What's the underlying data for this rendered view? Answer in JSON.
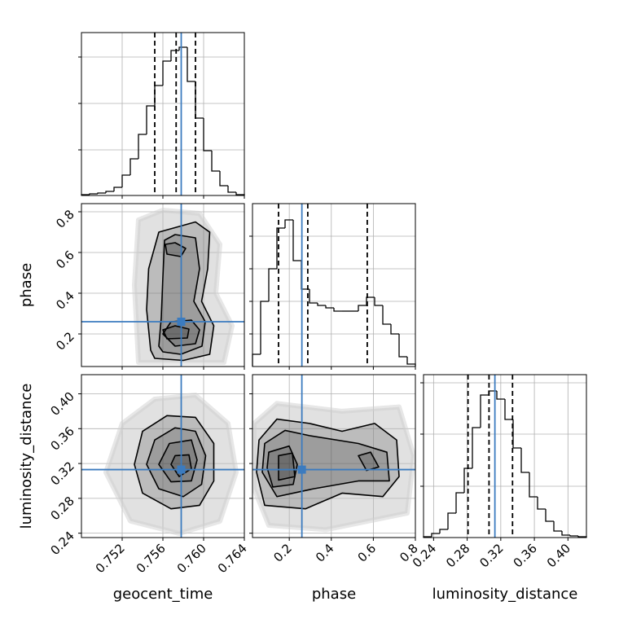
{
  "chart_data": {
    "type": "corner",
    "grid": true,
    "truth_color": "#3b7bbf",
    "parameters": [
      {
        "name": "geocent_time",
        "xlim": [
          0.748,
          0.764
        ],
        "ticks": [
          0.752,
          0.756,
          {
            "value": 0.76,
            "label": "0.760"
          },
          0.764
        ],
        "truth": 0.7578,
        "quantiles": [
          0.7552,
          0.7573,
          0.7592
        ],
        "hist": {
          "bins": [
            0.748,
            0.7488,
            0.7496,
            0.7504,
            0.7512,
            0.752,
            0.7528,
            0.7536,
            0.7544,
            0.7552,
            0.756,
            0.7568,
            0.7576,
            0.7584,
            0.7592,
            0.76,
            0.7608,
            0.7616,
            0.7624,
            0.7632,
            0.764
          ],
          "counts": [
            1,
            2,
            3,
            5,
            10,
            25,
            45,
            75,
            110,
            135,
            165,
            178,
            182,
            140,
            95,
            55,
            30,
            12,
            4,
            1
          ],
          "ylim": [
            0,
            200
          ],
          "yticks": [
            56,
            113,
            170
          ]
        }
      },
      {
        "name": "phase",
        "xlim": [
          0.025,
          0.8
        ],
        "ylim": [
          0.04,
          0.84
        ],
        "ticks": [
          0.2,
          0.4,
          0.6,
          0.8
        ],
        "truth": 0.26,
        "quantiles": [
          0.149,
          0.288,
          0.571
        ],
        "hist": {
          "bins": [
            0.025,
            0.06375,
            0.1025,
            0.14125,
            0.18,
            0.21875,
            0.2575,
            0.29625,
            0.335,
            0.37375,
            0.4125,
            0.45125,
            0.49,
            0.52875,
            0.5675,
            0.60625,
            0.645,
            0.68375,
            0.7225,
            0.76125,
            0.8
          ],
          "counts": [
            15,
            80,
            120,
            170,
            180,
            130,
            95,
            78,
            75,
            72,
            68,
            68,
            68,
            75,
            85,
            75,
            52,
            40,
            12,
            3
          ],
          "ylim": [
            0,
            200
          ],
          "yticks": [
            40,
            80,
            120,
            160
          ]
        }
      },
      {
        "name": "luminosity_distance",
        "xlim": [
          0.228,
          0.422
        ],
        "ylim": [
          0.235,
          0.422
        ],
        "ticks": [
          0.24,
          0.28,
          0.32,
          0.36,
          {
            "value": 0.4,
            "label": "0.40"
          }
        ],
        "truth": 0.313,
        "quantiles": [
          0.281,
          0.306,
          0.334
        ],
        "hist": {
          "bins": [
            0.228,
            0.2377,
            0.2474,
            0.2571,
            0.2668,
            0.2765,
            0.2862,
            0.2959,
            0.3056,
            0.3153,
            0.325,
            0.3347,
            0.3444,
            0.3541,
            0.3638,
            0.3735,
            0.3832,
            0.3929,
            0.4026,
            0.4123,
            0.422
          ],
          "counts": [
            1,
            5,
            10,
            30,
            55,
            85,
            135,
            175,
            180,
            170,
            145,
            110,
            80,
            50,
            35,
            20,
            8,
            3,
            2,
            1
          ],
          "ylim": [
            0,
            200
          ],
          "yticks": [
            63,
            127,
            190
          ]
        }
      }
    ],
    "pairs": [
      {
        "cloud": {
          "x": [
            0.7536,
            0.7532,
            0.7536,
            0.756,
            0.7596,
            0.7616,
            0.7612,
            0.7628,
            0.762
          ],
          "y": [
            0.06,
            0.44,
            0.76,
            0.808,
            0.792,
            0.64,
            0.4,
            0.24,
            0.06
          ]
        },
        "contours": [
          {
            "x": [
              0.7548,
              0.7544,
              0.7546,
              0.7556,
              0.7592,
              0.7606,
              0.7604,
              0.7598,
              0.761,
              0.7606,
              0.758,
              0.7552
            ],
            "y": [
              0.12,
              0.32,
              0.52,
              0.7,
              0.75,
              0.7,
              0.52,
              0.36,
              0.24,
              0.1,
              0.07,
              0.08
            ]
          },
          {
            "x": [
              0.7556,
              0.75584,
              0.756,
              0.75616,
              0.7572,
              0.7592,
              0.7596,
              0.75904,
              0.76016,
              0.75984,
              0.75776,
              0.756
            ],
            "y": [
              0.14,
              0.28,
              0.48,
              0.66,
              0.688,
              0.672,
              0.52,
              0.36,
              0.26,
              0.14,
              0.1,
              0.112
            ]
          },
          {
            "x": [
              0.756,
              0.7568,
              0.7588,
              0.7596,
              0.7592,
              0.7572
            ],
            "y": [
              0.2,
              0.26,
              0.268,
              0.22,
              0.152,
              0.14
            ]
          },
          {
            "x": [
              0.75624,
              0.7572,
              0.75824,
              0.75776,
              0.7564
            ],
            "y": [
              0.64,
              0.648,
              0.62,
              0.58,
              0.592
            ]
          },
          {
            "x": [
              0.756,
              0.7572,
              0.75856,
              0.7584,
              0.7564
            ],
            "y": [
              0.22,
              0.24,
              0.224,
              0.18,
              0.176
            ]
          }
        ]
      },
      {
        "cloud": {
          "x": [
            0.7504,
            0.752,
            0.7552,
            0.7592,
            0.7624,
            0.7632,
            0.7616,
            0.7576,
            0.7528
          ],
          "y": [
            0.3098,
            0.3659,
            0.394,
            0.3986,
            0.366,
            0.31,
            0.2537,
            0.2397,
            0.254
          ]
        },
        "contours": [
          {
            "x": [
              0.7532,
              0.754,
              0.7564,
              0.7592,
              0.761,
              0.761,
              0.7596,
              0.7568,
              0.754
            ],
            "y": [
              0.319,
              0.357,
              0.375,
              0.373,
              0.343,
              0.3,
              0.272,
              0.268,
              0.286
            ]
          },
          {
            "x": [
              0.7544,
              0.7552,
              0.7572,
              0.7592,
              0.7602,
              0.7598,
              0.758,
              0.7556
            ],
            "y": [
              0.319,
              0.347,
              0.361,
              0.357,
              0.329,
              0.296,
              0.282,
              0.291
            ]
          },
          {
            "x": [
              0.7556,
              0.75664,
              0.7588,
              0.75936,
              0.7588,
              0.7568
            ],
            "y": [
              0.319,
              0.343,
              0.347,
              0.324,
              0.3,
              0.299
            ]
          },
          {
            "x": [
              0.7568,
              0.7572,
              0.75856,
              0.7588,
              0.7576
            ],
            "y": [
              0.319,
              0.329,
              0.33,
              0.314,
              0.305
            ]
          }
        ]
      },
      {
        "cloud": {
          "x": [
            0.0328,
            0.1413,
            0.4513,
            0.7225,
            0.7923,
            0.7613,
            0.3738,
            0.1025,
            0.0328
          ],
          "y": [
            0.366,
            0.389,
            0.38,
            0.385,
            0.329,
            0.263,
            0.244,
            0.249,
            0.291
          ]
        },
        "contours": [
          {
            "x": [
              0.056,
              0.1413,
              0.2963,
              0.4513,
              0.6063,
              0.7109,
              0.7225,
              0.645,
              0.4513,
              0.2769,
              0.0831,
              0.0444
            ],
            "y": [
              0.347,
              0.371,
              0.366,
              0.357,
              0.366,
              0.347,
              0.305,
              0.282,
              0.286,
              0.268,
              0.272,
              0.31
            ]
          },
          {
            "x": [
              0.0831,
              0.18,
              0.2963,
              0.5288,
              0.6644,
              0.6761,
              0.5288,
              0.3156,
              0.1413,
              0.0715
            ],
            "y": [
              0.343,
              0.358,
              0.352,
              0.343,
              0.333,
              0.3,
              0.3,
              0.291,
              0.282,
              0.31
            ]
          },
          {
            "x": [
              0.1025,
              0.1994,
              0.2381,
              0.2188,
              0.1219,
              0.0947
            ],
            "y": [
              0.333,
              0.34,
              0.319,
              0.296,
              0.293,
              0.315
            ]
          },
          {
            "x": [
              0.5288,
              0.5869,
              0.6256,
              0.5675
            ],
            "y": [
              0.329,
              0.333,
              0.316,
              0.312
            ]
          },
          {
            "x": [
              0.149,
              0.2148,
              0.2265,
              0.149
            ],
            "y": [
              0.329,
              0.332,
              0.305,
              0.301
            ]
          }
        ]
      }
    ]
  }
}
